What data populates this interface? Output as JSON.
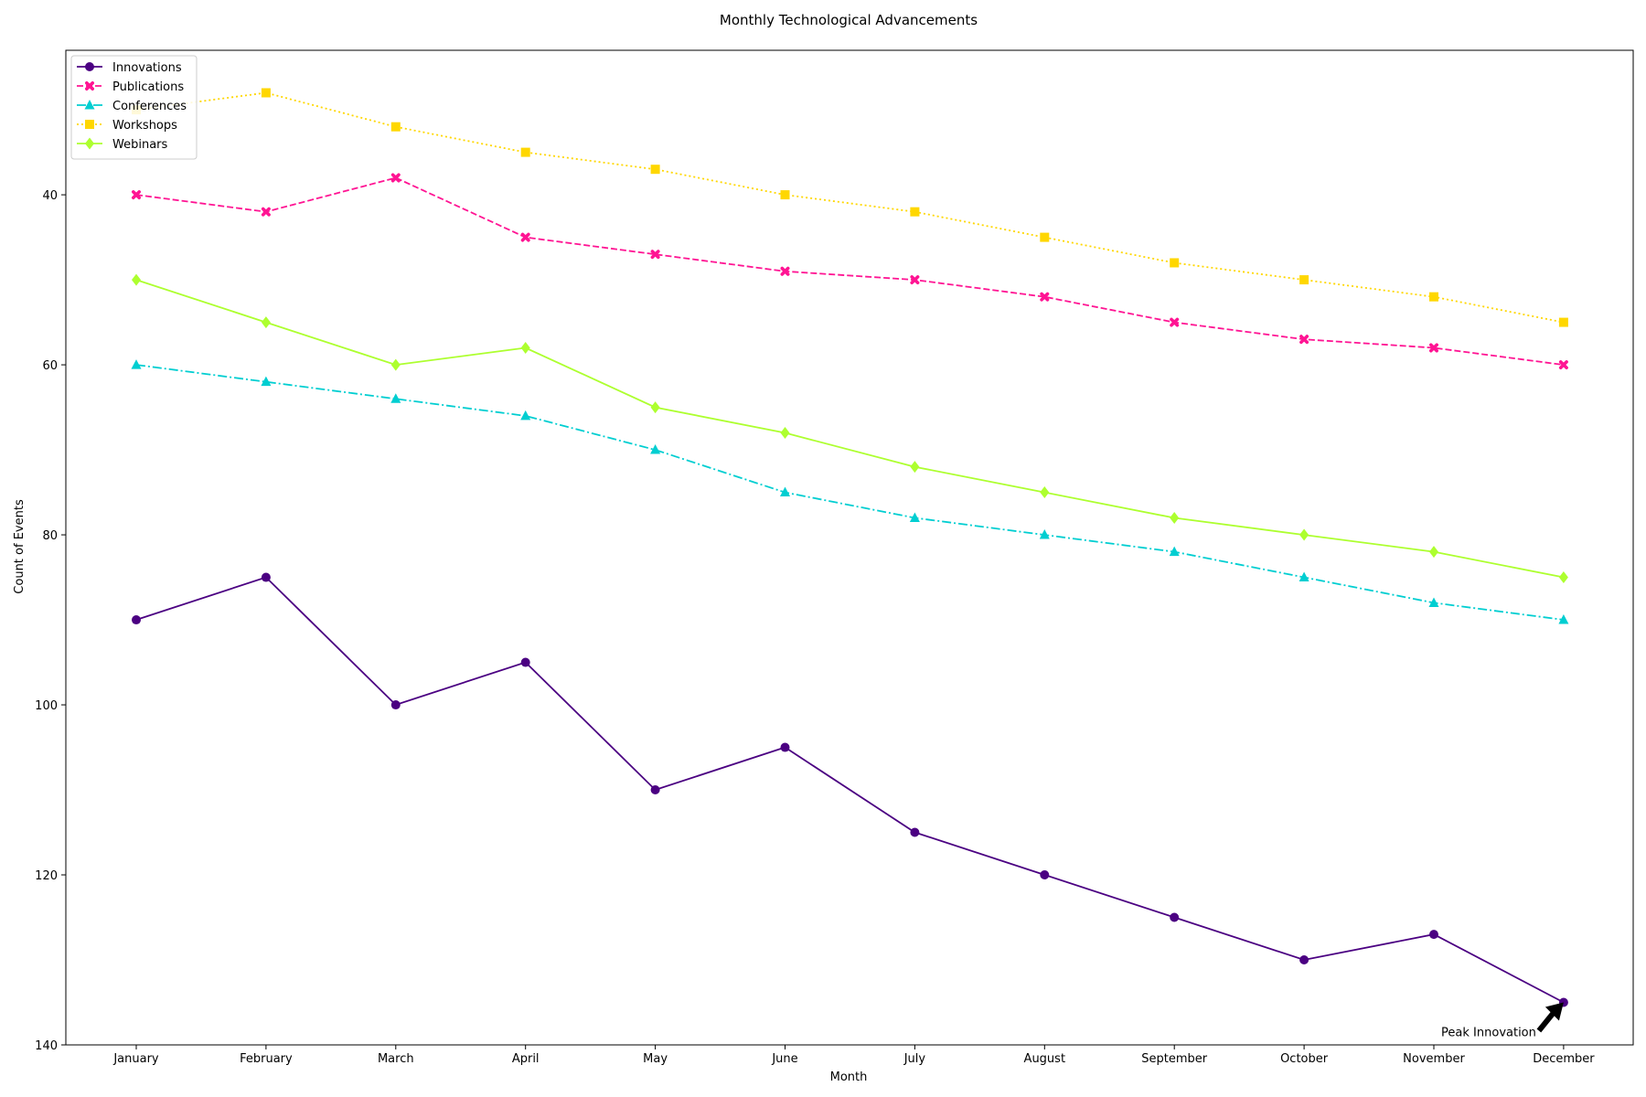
{
  "chart_data": {
    "type": "line",
    "title": "Monthly Technological Advancements",
    "xlabel": "Month",
    "ylabel": "Count of Events",
    "categories": [
      "January",
      "February",
      "March",
      "April",
      "May",
      "June",
      "July",
      "August",
      "September",
      "October",
      "November",
      "December"
    ],
    "ylim": [
      140,
      23
    ],
    "y_inverted": true,
    "yticks": [
      40,
      60,
      80,
      100,
      120,
      140
    ],
    "grid": false,
    "legend_position": "top-left",
    "series": [
      {
        "name": "Innovations",
        "color": "#4b0082",
        "marker": "circle",
        "line_style": "solid",
        "values": [
          90,
          85,
          100,
          95,
          110,
          105,
          115,
          120,
          125,
          130,
          127,
          135
        ]
      },
      {
        "name": "Publications",
        "color": "#ff1493",
        "marker": "x",
        "line_style": "dashed",
        "values": [
          40,
          42,
          38,
          45,
          47,
          49,
          50,
          52,
          55,
          57,
          58,
          60
        ]
      },
      {
        "name": "Conferences",
        "color": "#00ced1",
        "marker": "triangle",
        "line_style": "dashdot",
        "values": [
          60,
          62,
          64,
          66,
          70,
          75,
          78,
          80,
          82,
          85,
          88,
          90
        ]
      },
      {
        "name": "Workshops",
        "color": "#ffd700",
        "marker": "square",
        "line_style": "dotted",
        "values": [
          30,
          28,
          32,
          35,
          37,
          40,
          42,
          45,
          48,
          50,
          52,
          55
        ]
      },
      {
        "name": "Webinars",
        "color": "#adff2f",
        "marker": "diamond",
        "line_style": "solid",
        "values": [
          50,
          55,
          60,
          58,
          65,
          68,
          72,
          75,
          78,
          80,
          82,
          85
        ]
      }
    ],
    "annotation": {
      "text": "Peak Innovation",
      "category": "December",
      "value": 135
    }
  }
}
